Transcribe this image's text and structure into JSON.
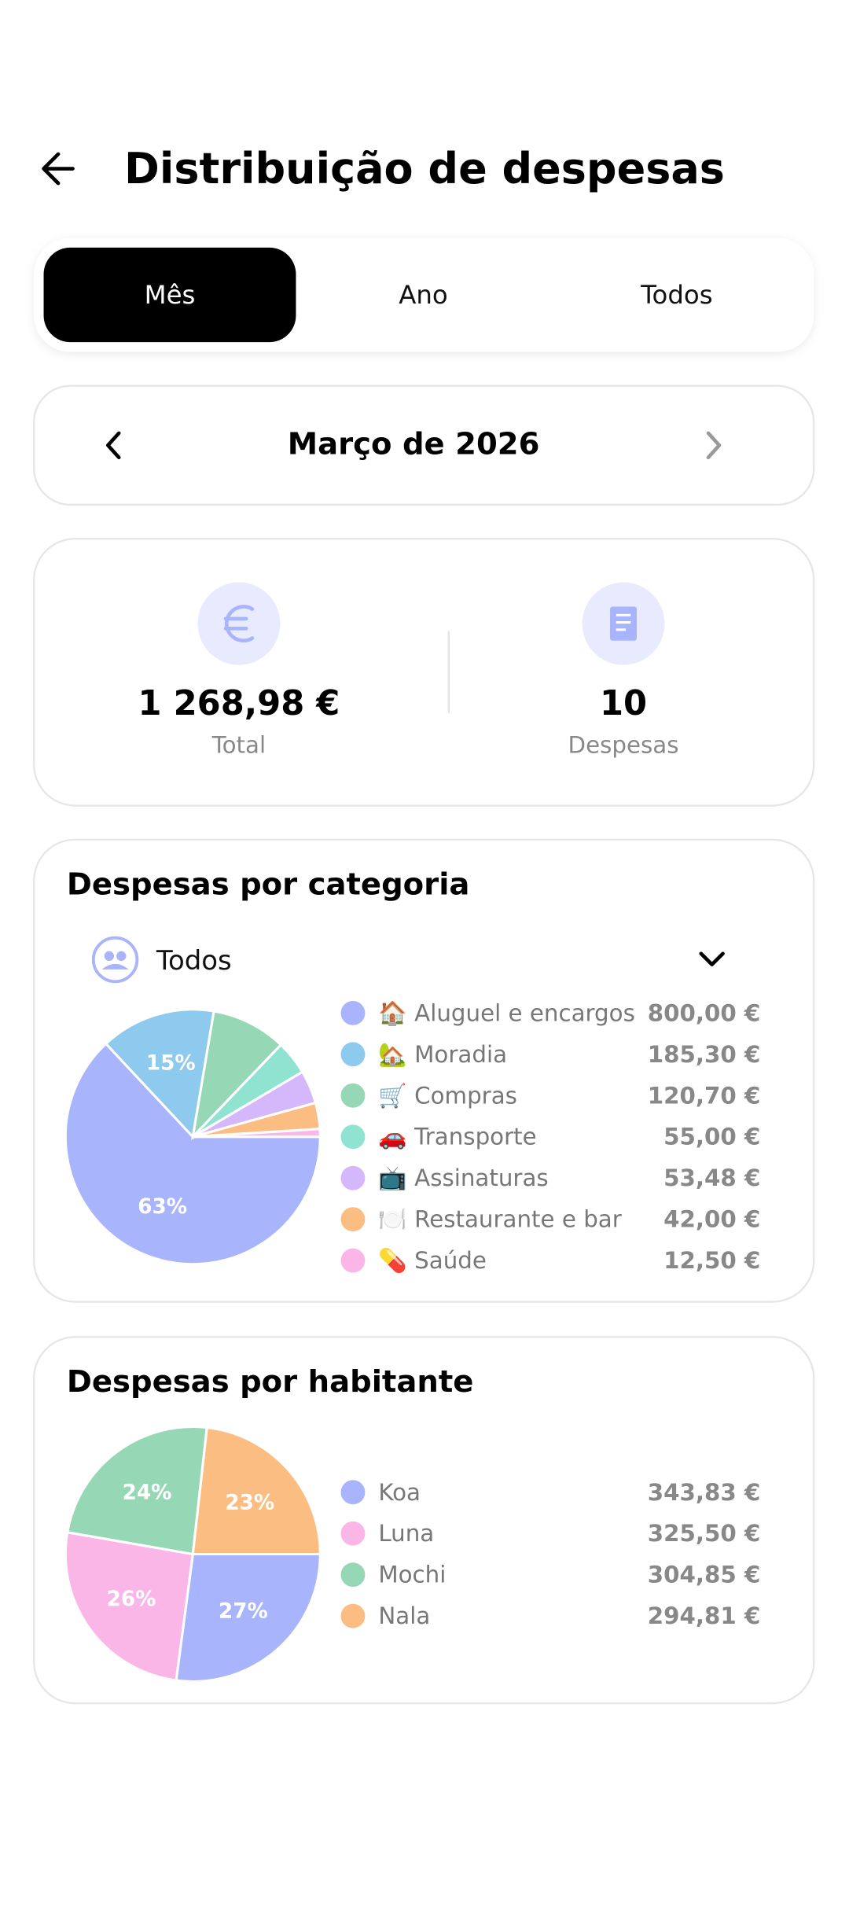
{
  "header": {
    "title": "Distribuição de despesas"
  },
  "tabs": [
    "Mês",
    "Ano",
    "Todos"
  ],
  "period": "Março de 2026",
  "summary": {
    "total": "1 268,98 €",
    "total_label": "Total",
    "count": "10",
    "count_label": "Despesas"
  },
  "chart_data": [
    {
      "type": "pie",
      "title": "Despesas por categoria",
      "filter": "Todos",
      "categories": [
        "🏠 Aluguel e encargos",
        "🏡 Moradia",
        "🛒 Compras",
        "🚗 Transporte",
        "📺 Assinaturas",
        "🍽️ Restaurante e bar",
        "💊 Saúde"
      ],
      "values": [
        800.0,
        185.3,
        120.7,
        55.0,
        53.48,
        42.0,
        12.5
      ],
      "value_labels": [
        "800,00 €",
        "185,30 €",
        "120,70 €",
        "55,00 €",
        "53,48 €",
        "42,00 €",
        "12,50 €"
      ],
      "slice_labels": [
        "63%",
        "15%",
        null,
        null,
        null,
        null,
        null
      ],
      "colors": [
        "#a8b4fb",
        "#8ec9ee",
        "#96d7b5",
        "#8fe3d0",
        "#d5b8fb",
        "#fcbd83",
        "#fbb6e8"
      ]
    },
    {
      "type": "pie",
      "title": "Despesas por habitante",
      "categories": [
        "Koa",
        "Luna",
        "Mochi",
        "Nala"
      ],
      "values": [
        343.83,
        325.5,
        304.85,
        294.81
      ],
      "value_labels": [
        "343,83 €",
        "325,50 €",
        "304,85 €",
        "294,81 €"
      ],
      "slice_labels": [
        "27%",
        "26%",
        "24%",
        "23%"
      ],
      "colors": [
        "#a8b4fb",
        "#fbb6e8",
        "#96d7b5",
        "#fcbd83"
      ]
    }
  ]
}
